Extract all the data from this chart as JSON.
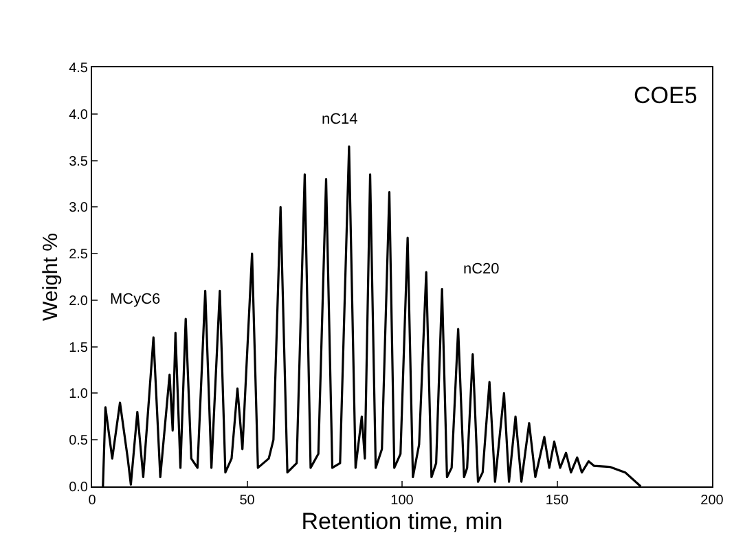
{
  "chart_data": {
    "type": "line",
    "title": "COE5",
    "xlabel": "Retention time, min",
    "ylabel": "Weight %",
    "xlim": [
      0,
      200
    ],
    "xticks": [
      0,
      50,
      100,
      150,
      200
    ],
    "ylim": [
      0,
      4.5
    ],
    "yticks": [
      {
        "value": 0,
        "label": "0.0"
      },
      {
        "value": 0.5,
        "label": "0.5"
      },
      {
        "value": 1,
        "label": "1.0"
      },
      {
        "value": 1.5,
        "label": "1.5"
      },
      {
        "value": 2,
        "label": "2.0"
      },
      {
        "value": 2.5,
        "label": "2.5"
      },
      {
        "value": 3,
        "label": "3.0"
      },
      {
        "value": 3.5,
        "label": "3.5"
      },
      {
        "value": 4,
        "label": "4.0"
      },
      {
        "value": 4.5,
        "label": "4.5"
      }
    ],
    "marker": "none",
    "line_style": "solid",
    "annotations": [
      "MCyC6",
      "nC14",
      "nC20"
    ],
    "series": [
      {
        "color": "#000000",
        "x": [
          3.5,
          4.3,
          6.5,
          9.0,
          11.5,
          12.5,
          14.6,
          16.5,
          19.8,
          22,
          25,
          26,
          26.9,
          28.5,
          30.2,
          32,
          34,
          36.5,
          38.5,
          41.2,
          43,
          45,
          46.9,
          48.5,
          51.6,
          53.5,
          57,
          58.5,
          60.8,
          63,
          66,
          68.6,
          70.5,
          73,
          75.5,
          77.5,
          80,
          82.9,
          85,
          87,
          88,
          89.7,
          91.5,
          93.5,
          95.9,
          97.5,
          99.5,
          101.8,
          103.5,
          105.5,
          107.8,
          109.5,
          111,
          112.9,
          114.5,
          116,
          118.1,
          120,
          121,
          122.8,
          124.5,
          126,
          128.2,
          130,
          132.9,
          134.5,
          136.6,
          138.5,
          141,
          143,
          145.9,
          147.5,
          149.1,
          151,
          152.9,
          154.5,
          156.5,
          158,
          160.2,
          162,
          167,
          172,
          177
        ],
        "values": [
          0,
          0.85,
          0.3,
          0.9,
          0.3,
          0.02,
          0.8,
          0.1,
          1.6,
          0.1,
          1.2,
          0.6,
          1.65,
          0.2,
          1.8,
          0.3,
          0.2,
          2.1,
          0.2,
          2.1,
          0.15,
          0.3,
          1.05,
          0.4,
          2.5,
          0.2,
          0.3,
          0.5,
          3.0,
          0.15,
          0.25,
          3.35,
          0.2,
          0.35,
          3.3,
          0.2,
          0.25,
          3.65,
          0.2,
          0.75,
          0.3,
          3.35,
          0.2,
          0.4,
          3.16,
          0.2,
          0.35,
          2.67,
          0.1,
          0.45,
          2.3,
          0.1,
          0.25,
          2.12,
          0.1,
          0.2,
          1.69,
          0.1,
          0.2,
          1.42,
          0.05,
          0.15,
          1.12,
          0.05,
          1.0,
          0.05,
          0.75,
          0.05,
          0.68,
          0.1,
          0.53,
          0.2,
          0.48,
          0.2,
          0.36,
          0.15,
          0.31,
          0.15,
          0.27,
          0.22,
          0.21,
          0.15,
          0.0
        ]
      }
    ]
  }
}
